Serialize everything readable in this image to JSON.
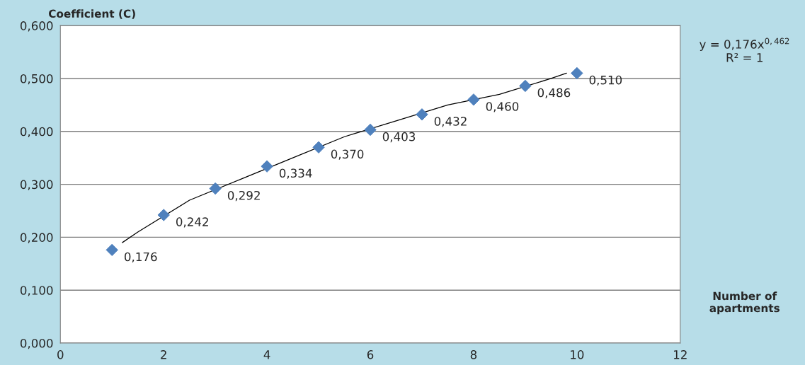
{
  "chart_data": {
    "type": "scatter",
    "xlabel": "Number of\napartments",
    "ylabel": "Coefficient (C)",
    "x": [
      1,
      2,
      3,
      4,
      5,
      6,
      7,
      8,
      9,
      10
    ],
    "series": [
      {
        "type": "scatter",
        "color": "#4f81bd",
        "marker": "diamond",
        "values": [
          0.176,
          0.242,
          0.292,
          0.334,
          0.37,
          0.403,
          0.432,
          0.46,
          0.486,
          0.51
        ],
        "value_labels": [
          "0,176",
          "0,242",
          "0,292",
          "0,334",
          "0,370",
          "0,403",
          "0,432",
          "0,460",
          "0,486",
          "0,510"
        ]
      },
      {
        "type": "line",
        "color": "#000000",
        "line_style": "solid",
        "marker": "none",
        "x": [
          1.2,
          1.5,
          2.5,
          3.5,
          4.5,
          5.5,
          6.5,
          7.5,
          8.5,
          9.5,
          9.8
        ],
        "values": [
          0.19,
          0.21,
          0.27,
          0.31,
          0.35,
          0.39,
          0.42,
          0.45,
          0.47,
          0.5,
          0.51
        ]
      }
    ],
    "annotations": [
      "y = 0,176x$^{0,462}$\nR² = 1"
    ],
    "xlim": [
      0,
      12
    ],
    "xticks": [
      0,
      2,
      4,
      6,
      8,
      10,
      12
    ],
    "ylim": [
      0,
      0.6
    ],
    "yticks": [
      {
        "value": 0,
        "label": "0,000"
      },
      {
        "value": 0.1,
        "label": "0,100"
      },
      {
        "value": 0.2,
        "label": "0,200"
      },
      {
        "value": 0.3,
        "label": "0,300"
      },
      {
        "value": 0.4,
        "label": "0,400"
      },
      {
        "value": 0.5,
        "label": "0,500"
      },
      {
        "value": 0.6,
        "label": "0,600"
      }
    ],
    "grid": "y",
    "legend": false
  }
}
